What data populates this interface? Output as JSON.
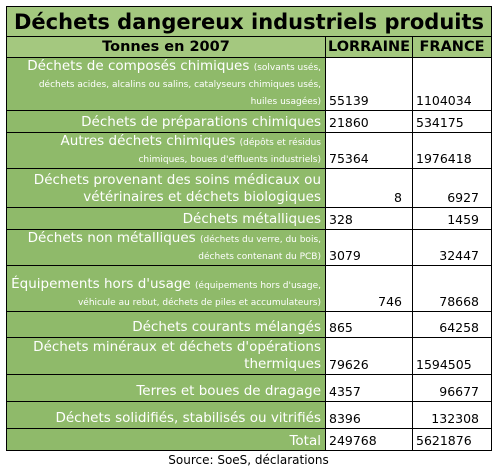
{
  "title": "Déchets dangereux industriels produits",
  "headers": {
    "category": "Tonnes en 2007",
    "lorraine": "LORRAINE",
    "france": "FRANCE"
  },
  "rows": [
    {
      "label": "Déchets de composés chimiques",
      "note": "(solvants usés, déchets acides, alcalins ou salins, catalyseurs chimiques usés, huiles usagées)",
      "lorraine": "55139",
      "france": "1104034"
    },
    {
      "label": "Déchets de préparations chimiques",
      "note": "",
      "lorraine": "21860",
      "france": "534175"
    },
    {
      "label": "Autres déchets chimiques",
      "note": "(dépôts et résidus chimiques, boues d'effluents industriels)",
      "lorraine": "75364",
      "france": "1976418"
    },
    {
      "label": "Déchets provenant des soins médicaux ou vétérinaires et déchets biologiques",
      "note": "",
      "lorraine": "8",
      "france": "6927"
    },
    {
      "label": "Déchets métalliques",
      "note": "",
      "lorraine": "328",
      "france": "1459"
    },
    {
      "label": "Déchets non métalliques",
      "note": "(déchets du verre, du bois, déchets contenant du PCB)",
      "lorraine": "3079",
      "france": "32447"
    },
    {
      "label": "Équipements hors d'usage",
      "note": "(équipements hors d'usage, véhicule au rebut, déchets de piles et accumulateurs)",
      "lorraine": "746",
      "france": "78668"
    },
    {
      "label": "Déchets courants mélangés",
      "note": "",
      "lorraine": "865",
      "france": "64258"
    },
    {
      "label": "Déchets minéraux et déchets d'opérations thermiques",
      "note": "",
      "lorraine": "79626",
      "france": "1594505"
    },
    {
      "label": "Terres et boues de dragage",
      "note": "",
      "lorraine": "4357",
      "france": "96677"
    },
    {
      "label": "Déchets solidifiés, stabilisés ou vitrifiés",
      "note": "",
      "lorraine": "8396",
      "france": "132308"
    }
  ],
  "total": {
    "label": "Total",
    "lorraine": "249768",
    "france": "5621876"
  },
  "source": "Source: SoeS, déclarations",
  "colors": {
    "header_green": "#a4c87f",
    "label_green": "#8fba6a"
  }
}
